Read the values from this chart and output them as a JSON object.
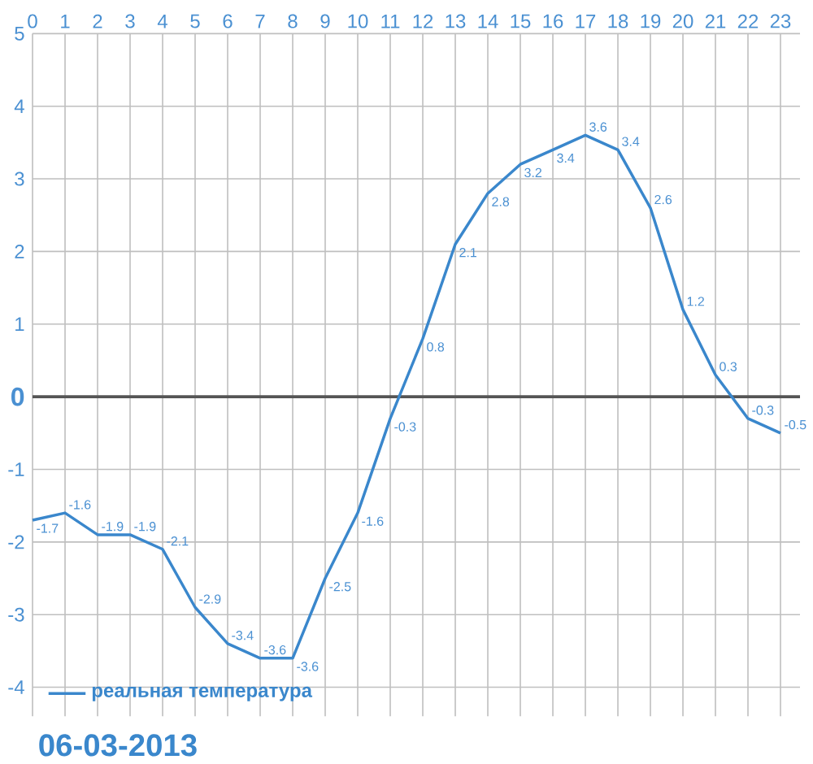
{
  "chart_data": {
    "type": "line",
    "title": "06-03-2013",
    "x": [
      0,
      1,
      2,
      3,
      4,
      5,
      6,
      7,
      8,
      9,
      10,
      11,
      12,
      13,
      14,
      15,
      16,
      17,
      18,
      19,
      20,
      21,
      22,
      23
    ],
    "series": [
      {
        "name": "реальная температура",
        "color": "#3a87cc",
        "values": [
          -1.7,
          -1.6,
          -1.9,
          -1.9,
          -2.1,
          -2.9,
          -3.4,
          -3.6,
          -3.6,
          -2.5,
          -1.6,
          -0.3,
          0.8,
          2.1,
          2.8,
          3.2,
          3.4,
          3.6,
          3.4,
          2.6,
          1.2,
          0.3,
          -0.3,
          -0.5
        ]
      }
    ],
    "xlim": [
      0,
      23.6
    ],
    "ylim": [
      -4.4,
      5
    ],
    "xticks": [
      0,
      1,
      2,
      3,
      4,
      5,
      6,
      7,
      8,
      9,
      10,
      11,
      12,
      13,
      14,
      15,
      16,
      17,
      18,
      19,
      20,
      21,
      22,
      23
    ],
    "yticks": [
      -4,
      -3,
      -2,
      -1,
      0,
      1,
      2,
      3,
      4,
      5
    ],
    "ref_lines": [
      {
        "axis": "y",
        "value": 0,
        "color": "#555555"
      }
    ],
    "grid": true,
    "legend": "bottom left",
    "data_labels": true,
    "marker": "none",
    "line_style": "solid"
  }
}
